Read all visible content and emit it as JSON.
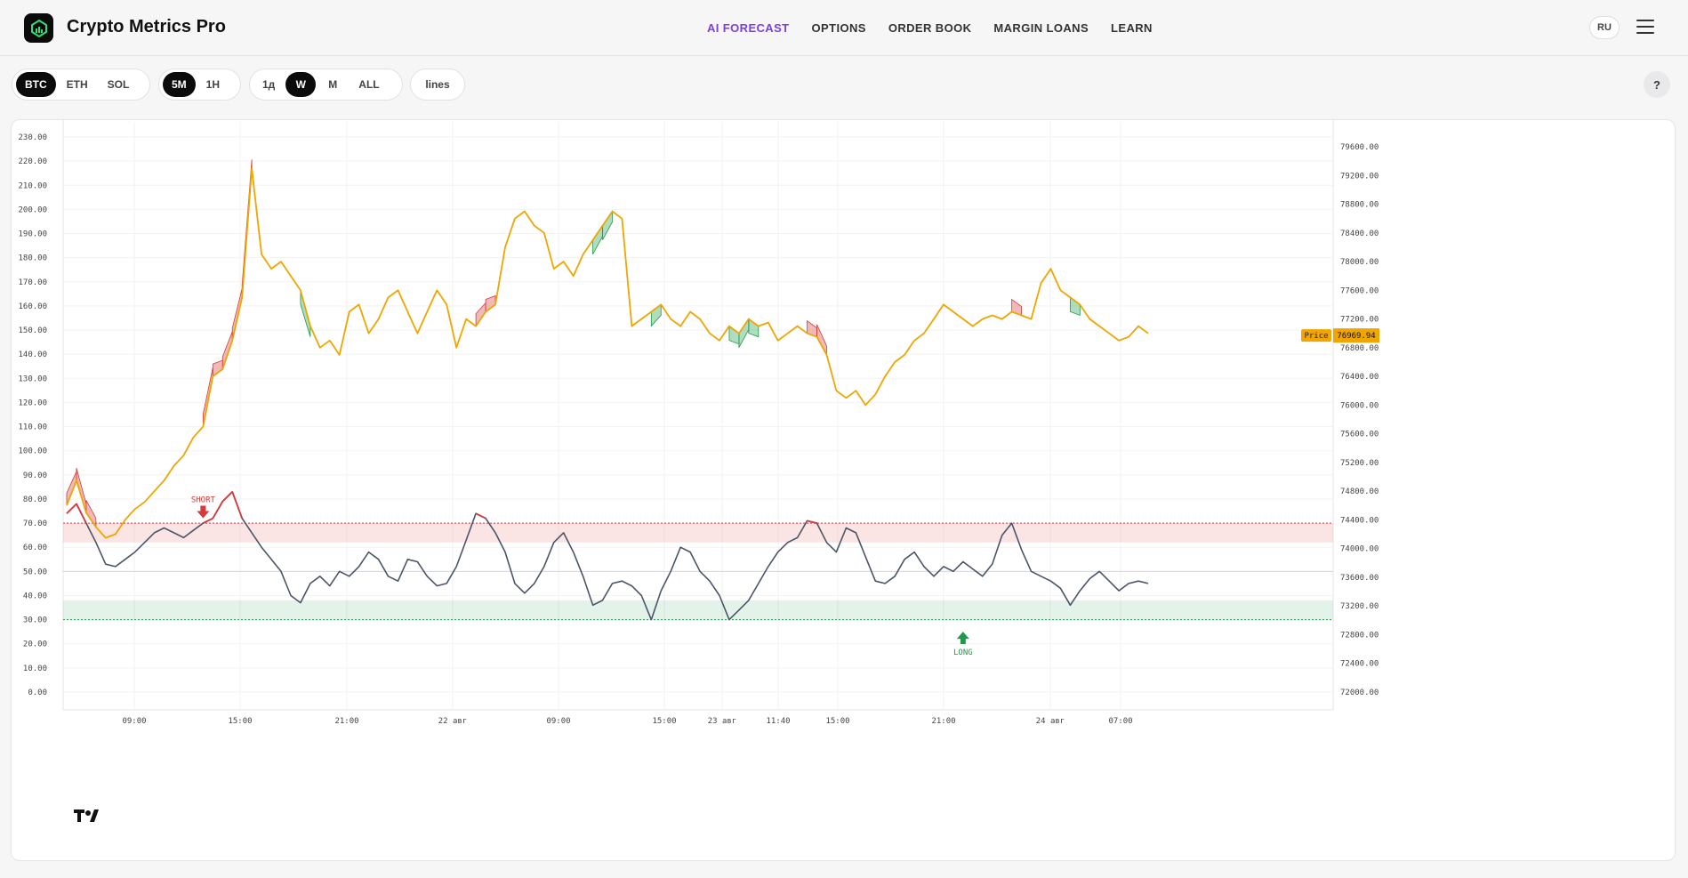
{
  "app": {
    "title": "Crypto Metrics Pro"
  },
  "nav": {
    "items": [
      "AI FORECAST",
      "OPTIONS",
      "ORDER BOOK",
      "MARGIN LOANS",
      "LEARN"
    ],
    "active": "AI FORECAST"
  },
  "header": {
    "language": "RU"
  },
  "toolbar": {
    "assets": [
      "BTC",
      "ETH",
      "SOL"
    ],
    "active_asset": "BTC",
    "intervals": [
      "5M",
      "1H"
    ],
    "active_interval": "5M",
    "ranges": [
      "1д",
      "W",
      "M",
      "ALL"
    ],
    "active_range": "W",
    "style": "lines",
    "help": "?"
  },
  "colors": {
    "accent": "#7b3fe4",
    "price_line": "#f0a500",
    "rsi_line": "#4a5567",
    "overbought": "#d63a3a",
    "oversold": "#1e9a4a"
  },
  "chart_data": {
    "type": "line",
    "series": [
      {
        "name": "Price",
        "axis": "right"
      },
      {
        "axis": "left"
      }
    ],
    "x_ticks": [
      "09:00",
      "15:00",
      "21:00",
      "22 авг",
      "09:00",
      "15:00",
      "23 авг",
      "11:40",
      "15:00",
      "21:00",
      "24 авг",
      "07:00"
    ],
    "left_axis": {
      "ticks": [
        "0.00",
        "10.00",
        "20.00",
        "30.00",
        "40.00",
        "50.00",
        "60.00",
        "70.00",
        "80.00",
        "90.00",
        "100.00",
        "110.00",
        "120.00",
        "130.00",
        "140.00",
        "150.00",
        "160.00",
        "170.00",
        "180.00",
        "190.00",
        "200.00",
        "210.00",
        "220.00",
        "230.00"
      ],
      "range": [
        0,
        230
      ]
    },
    "right_axis": {
      "ticks": [
        "72000.00",
        "72400.00",
        "72800.00",
        "73200.00",
        "73600.00",
        "74000.00",
        "74400.00",
        "74800.00",
        "75200.00",
        "75600.00",
        "76000.00",
        "76400.00",
        "76800.00",
        "77200.00",
        "77600.00",
        "78000.00",
        "78400.00",
        "78800.00",
        "79200.00",
        "79600.00"
      ],
      "range": [
        72000,
        79600
      ]
    },
    "overbought_band": [
      62,
      70
    ],
    "oversold_band": [
      30,
      38
    ],
    "price_label": "Price",
    "last_price": "76969.94",
    "signals": [
      {
        "label": "SHORT",
        "x_index": 14,
        "level": 75
      },
      {
        "label": "LONG",
        "x_index": 92,
        "level": 25
      }
    ],
    "price_values": [
      74600,
      74950,
      74500,
      74300,
      74150,
      74200,
      74400,
      74550,
      74650,
      74800,
      74950,
      75150,
      75300,
      75550,
      75700,
      76400,
      76500,
      76900,
      77500,
      79300,
      78100,
      77900,
      78000,
      77800,
      77600,
      77100,
      76800,
      76900,
      76700,
      77300,
      77400,
      77000,
      77200,
      77500,
      77600,
      77300,
      77000,
      77300,
      77600,
      77400,
      76800,
      77200,
      77100,
      77300,
      77400,
      78200,
      78600,
      78700,
      78500,
      78400,
      77900,
      78000,
      77800,
      78100,
      78300,
      78500,
      78700,
      78600,
      77100,
      77200,
      77300,
      77400,
      77200,
      77100,
      77300,
      77200,
      77000,
      76900,
      77100,
      77000,
      77200,
      77100,
      77150,
      76900,
      77000,
      77100,
      77000,
      76950,
      76700,
      76200,
      76100,
      76200,
      76000,
      76150,
      76400,
      76600,
      76700,
      76900,
      77000,
      77200,
      77400,
      77300,
      77200,
      77100,
      77200,
      77250,
      77200,
      77300,
      77250,
      77200,
      77700,
      77900,
      77600,
      77500,
      77400,
      77200,
      77100,
      77000,
      76900,
      76950,
      77100,
      77000
    ],
    "rsi_values": [
      74,
      78,
      70,
      62,
      53,
      52,
      55,
      58,
      62,
      66,
      68,
      66,
      64,
      67,
      70,
      72,
      79,
      83,
      72,
      66,
      60,
      55,
      50,
      40,
      37,
      45,
      48,
      44,
      50,
      48,
      52,
      58,
      55,
      48,
      46,
      55,
      54,
      48,
      44,
      45,
      52,
      63,
      74,
      72,
      66,
      58,
      45,
      41,
      45,
      52,
      62,
      66,
      58,
      48,
      36,
      38,
      45,
      46,
      44,
      40,
      30,
      42,
      50,
      60,
      58,
      50,
      46,
      40,
      30,
      34,
      38,
      45,
      52,
      58,
      62,
      64,
      71,
      70,
      62,
      58,
      68,
      66,
      56,
      46,
      45,
      48,
      55,
      58,
      52,
      48,
      52,
      50,
      54,
      51,
      48,
      53,
      65,
      70,
      59,
      50,
      48,
      46,
      43,
      36,
      42,
      47,
      50,
      46,
      42,
      45,
      46,
      45
    ]
  }
}
